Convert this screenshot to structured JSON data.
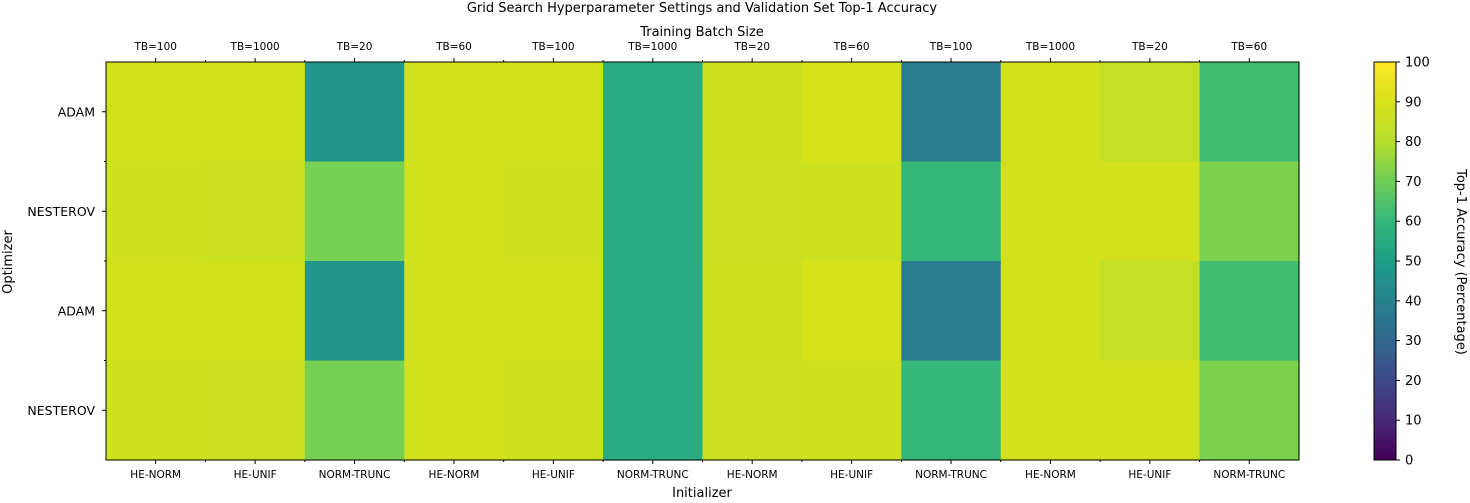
{
  "chart_data": {
    "type": "heatmap",
    "title": "Grid Search Hyperparameter Settings and Validation Set Top-1 Accuracy",
    "top_xlabel": "Training Batch Size",
    "xlabel": "Initializer",
    "ylabel": "Optimizer",
    "colorbar_label": "Top-1 Accuracy (Percentage)",
    "colorbar_ticks": [
      "0",
      "10",
      "20",
      "30",
      "40",
      "50",
      "60",
      "70",
      "80",
      "90",
      "100"
    ],
    "colormap": "viridis",
    "vmin": 0,
    "vmax": 100,
    "x_categories": [
      "HE-NORM",
      "HE-UNIF",
      "NORM-TRUNC",
      "HE-NORM",
      "HE-UNIF",
      "NORM-TRUNC",
      "HE-NORM",
      "HE-UNIF",
      "NORM-TRUNC",
      "HE-NORM",
      "HE-UNIF",
      "NORM-TRUNC"
    ],
    "top_x_categories": [
      "TB=100",
      "TB=1000",
      "TB=20",
      "TB=60",
      "TB=100",
      "TB=1000",
      "TB=20",
      "TB=60",
      "TB=100",
      "TB=1000",
      "TB=20",
      "TB=60"
    ],
    "y_categories": [
      "ADAM",
      "NESTEROV",
      "ADAM",
      "NESTEROV"
    ],
    "values": [
      [
        88,
        88,
        47,
        88,
        88,
        55,
        87,
        90,
        38,
        88,
        84,
        62
      ],
      [
        87,
        86,
        71,
        88,
        87,
        55,
        86,
        87,
        60,
        88,
        88,
        72
      ],
      [
        88,
        88,
        47,
        88,
        88,
        55,
        87,
        90,
        38,
        88,
        84,
        62
      ],
      [
        87,
        86,
        71,
        88,
        87,
        55,
        86,
        87,
        60,
        88,
        88,
        72
      ]
    ]
  }
}
